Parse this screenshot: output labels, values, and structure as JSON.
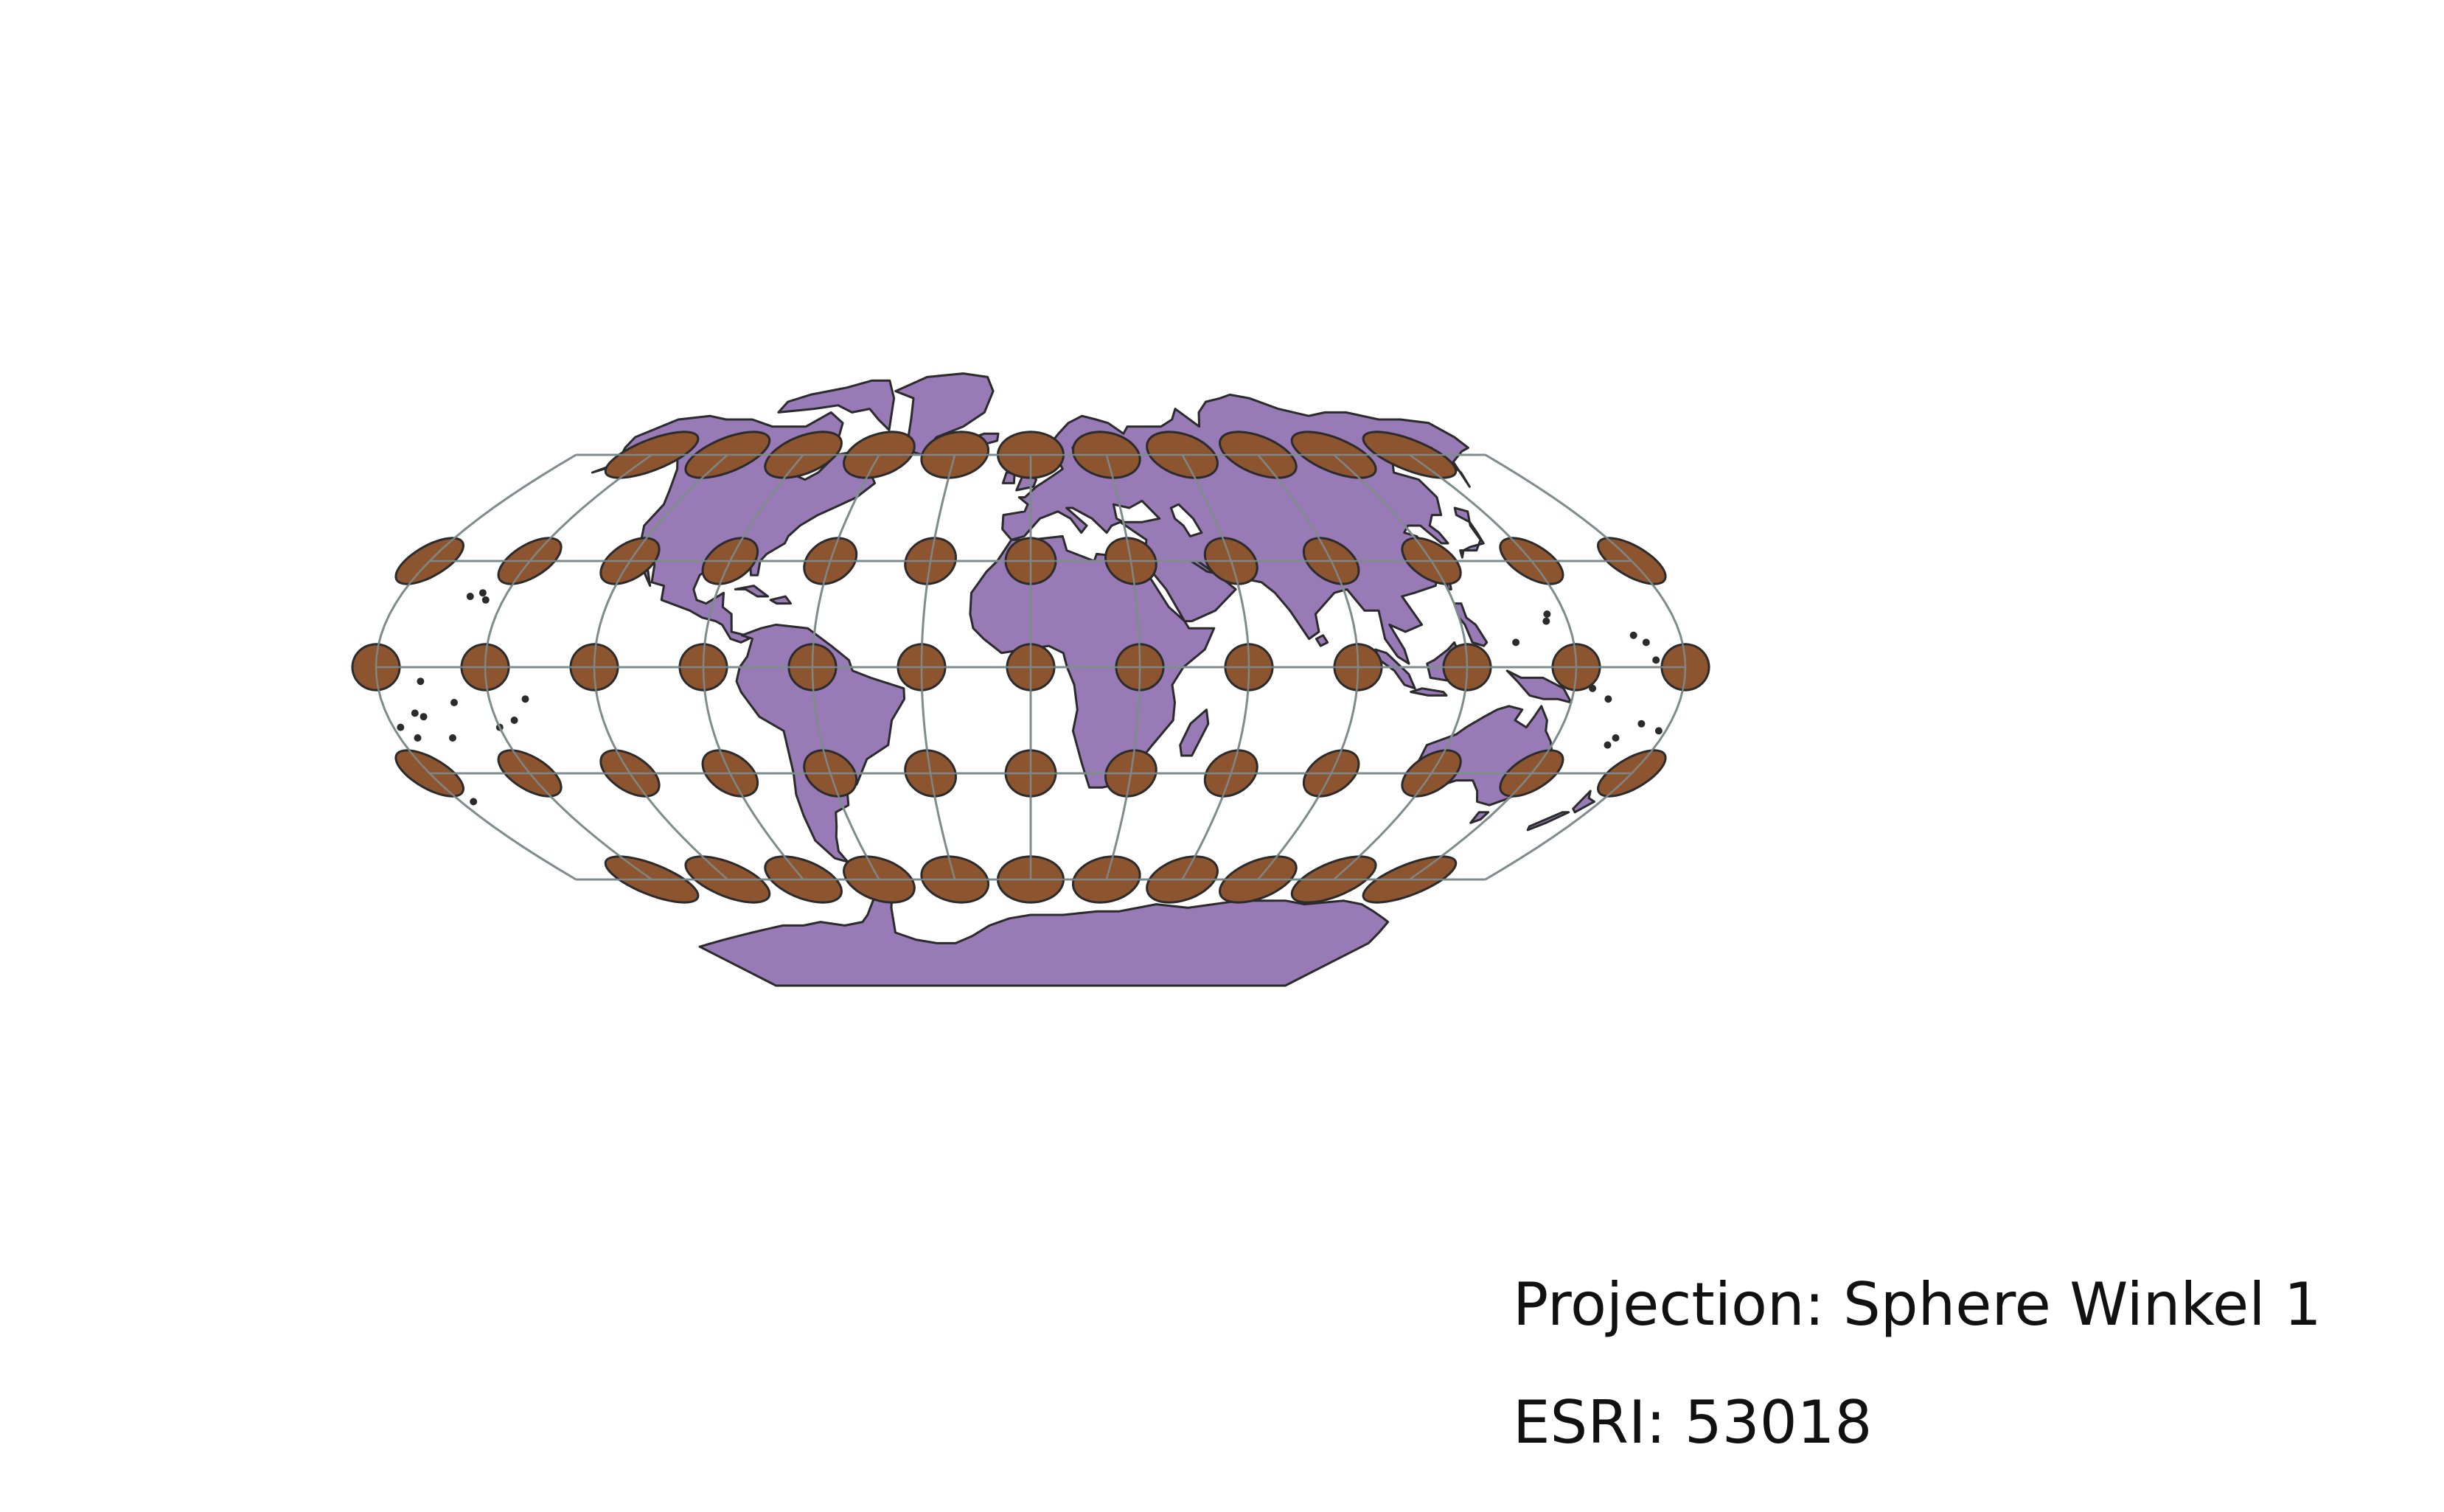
{
  "map": {
    "caption": {
      "projection_line": "Projection: Sphere Winkel 1",
      "code_line": "ESRI: 53018"
    },
    "colors": {
      "land": "#977ab6",
      "land_outline": "#2b2b2b",
      "indicatrix_fill": "#8d5430",
      "indicatrix_outline": "#2b2b2b",
      "graticule": "#7f8c8d",
      "background": "#ffffff"
    },
    "graticule": {
      "meridians_deg": [
        -180,
        -150,
        -120,
        -90,
        -60,
        -30,
        0,
        30,
        60,
        90,
        120,
        150,
        180
      ],
      "parallels_deg": [
        -60,
        -30,
        0,
        30,
        60
      ]
    },
    "tissot_indicatrices": {
      "longitudes_deg": [
        -150,
        -120,
        -90,
        -60,
        -30,
        0,
        30,
        60,
        90,
        120,
        150
      ],
      "latitudes_deg": [
        -60,
        -30,
        0,
        30,
        60
      ],
      "edge_longitudes_deg": [
        -180,
        180
      ],
      "edge_latitudes_deg": [
        -30,
        0,
        30
      ]
    }
  }
}
